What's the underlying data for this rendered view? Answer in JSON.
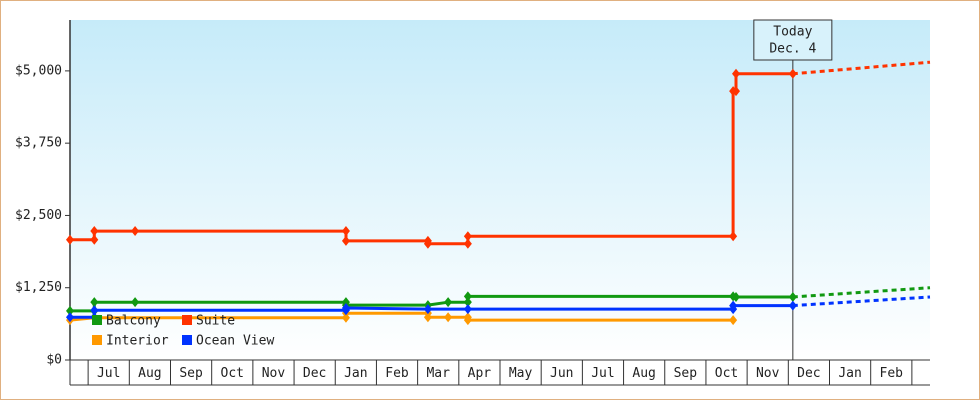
{
  "chart_data": {
    "type": "step-line",
    "xlim": [
      -0.44,
      20.44
    ],
    "xticks": [
      {
        "value": 0,
        "label": "Jul"
      },
      {
        "value": 1,
        "label": "Aug"
      },
      {
        "value": 2,
        "label": "Sep"
      },
      {
        "value": 3,
        "label": "Oct"
      },
      {
        "value": 4,
        "label": "Nov"
      },
      {
        "value": 5,
        "label": "Dec"
      },
      {
        "value": 6,
        "label": "Jan"
      },
      {
        "value": 7,
        "label": "Feb"
      },
      {
        "value": 8,
        "label": "Mar"
      },
      {
        "value": 9,
        "label": "Apr"
      },
      {
        "value": 10,
        "label": "May"
      },
      {
        "value": 11,
        "label": "Jun"
      },
      {
        "value": 12,
        "label": "Jul"
      },
      {
        "value": 13,
        "label": "Aug"
      },
      {
        "value": 14,
        "label": "Sep"
      },
      {
        "value": 15,
        "label": "Oct"
      },
      {
        "value": 16,
        "label": "Nov"
      },
      {
        "value": 17,
        "label": "Dec"
      },
      {
        "value": 18,
        "label": "Jan"
      },
      {
        "value": 19,
        "label": "Feb"
      }
    ],
    "ylim": [
      0,
      5880
    ],
    "yticks": [
      {
        "value": 0,
        "label": "$0"
      },
      {
        "value": 1250,
        "label": "$1,250"
      },
      {
        "value": 2500,
        "label": "$2,500"
      },
      {
        "value": 3750,
        "label": "$3,750"
      },
      {
        "value": 5000,
        "label": "$5,000"
      }
    ],
    "grid": false,
    "annotation": {
      "x": 17.11,
      "lines": [
        "Today",
        "Dec. 4"
      ]
    },
    "series": [
      {
        "name": "Suite",
        "color": "#ff3300",
        "x": [
          -0.44,
          0.15,
          0.15,
          1.14,
          6.26,
          6.26,
          8.25,
          8.25,
          9.22,
          9.22,
          15.66,
          15.66,
          15.73,
          15.73,
          17.11
        ],
        "values": [
          2080,
          2080,
          2230,
          2230,
          2230,
          2060,
          2060,
          2010,
          2010,
          2140,
          2140,
          4650,
          4650,
          4950,
          4950
        ],
        "forecast": {
          "x": [
            17.11,
            20.44
          ],
          "values": [
            4950,
            5150
          ]
        }
      },
      {
        "name": "Balcony",
        "color": "#119911",
        "x": [
          -0.44,
          0.15,
          0.15,
          1.14,
          6.26,
          6.26,
          8.25,
          8.74,
          9.22,
          9.22,
          15.66,
          15.73,
          17.11
        ],
        "values": [
          850,
          850,
          1000,
          1000,
          1000,
          950,
          950,
          1000,
          1000,
          1100,
          1100,
          1090,
          1090
        ],
        "forecast": {
          "x": [
            17.11,
            20.44
          ],
          "values": [
            1090,
            1250
          ]
        }
      },
      {
        "name": "Interior",
        "color": "#ff9900",
        "x": [
          -0.44,
          0.15,
          6.26,
          6.26,
          8.25,
          8.25,
          8.74,
          9.22,
          9.22,
          15.66
        ],
        "values": [
          690,
          730,
          730,
          810,
          810,
          740,
          740,
          740,
          690,
          690
        ]
      },
      {
        "name": "Ocean View",
        "color": "#0033ff",
        "x": [
          -0.44,
          0.15,
          0.15,
          6.26,
          6.26,
          8.25,
          9.22,
          15.66,
          15.66,
          17.11
        ],
        "values": [
          740,
          740,
          860,
          860,
          900,
          880,
          880,
          880,
          940,
          940
        ],
        "forecast": {
          "x": [
            17.11,
            20.44
          ],
          "values": [
            940,
            1090
          ]
        }
      }
    ]
  }
}
